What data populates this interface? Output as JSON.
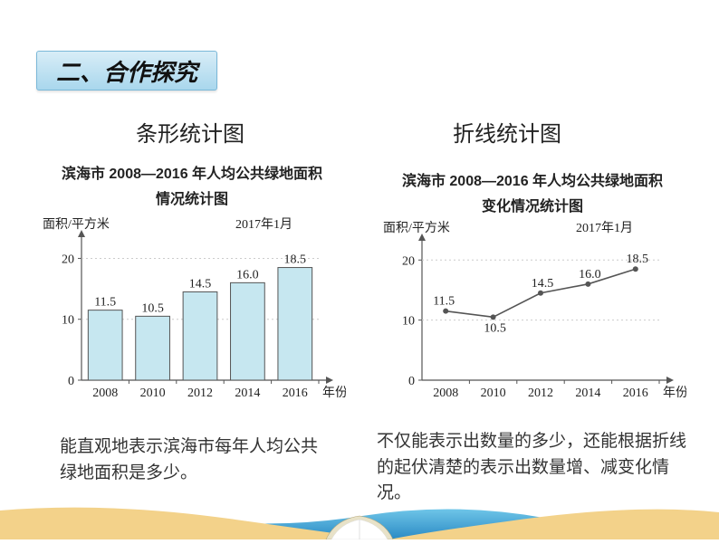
{
  "section_header": "二、合作探究",
  "left": {
    "title": "条形统计图",
    "subtitle_line1": "滨海市 2008—2016 年人均公共绿地面积",
    "subtitle_line2": "情况统计图",
    "yaxis_label": "面积/平方米",
    "date_label": "2017年1月",
    "xaxis_label": "年份",
    "summary": "能直观地表示滨海市每年人均公共绿地面积是多少。"
  },
  "right": {
    "title": "折线统计图",
    "subtitle_line1": "滨海市 2008—2016 年人均公共绿地面积",
    "subtitle_line2": "变化情况统计图",
    "yaxis_label": "面积/平方米",
    "date_label": "2017年1月",
    "xaxis_label": "年份",
    "summary": "不仅能表示出数量的多少，还能根据折线的起伏清楚的表示出数量增、减变化情况。"
  },
  "chart": {
    "categories": [
      "2008",
      "2010",
      "2012",
      "2014",
      "2016"
    ],
    "values": [
      11.5,
      10.5,
      14.5,
      16.0,
      18.5
    ],
    "value_labels": [
      "11.5",
      "10.5",
      "14.5",
      "16.0",
      "18.5"
    ],
    "yticks": [
      0,
      10,
      20
    ],
    "ylim": [
      0,
      22
    ],
    "bar_fill": "#c6e7f0",
    "bar_stroke": "#555555",
    "axis_color": "#555555",
    "grid_color": "#cccccc",
    "text_color": "#222222",
    "bar_width_ratio": 0.72,
    "line_stroke": "#555555",
    "marker_fill": "#555555",
    "marker_radius": 3
  },
  "footer": {
    "sand_color": "#f3d28a",
    "sea_color_top": "#6ec5e8",
    "sea_color_bottom": "#2a8ac4",
    "book_cover": "#e8e2c8",
    "book_pages": "#ffffff"
  }
}
